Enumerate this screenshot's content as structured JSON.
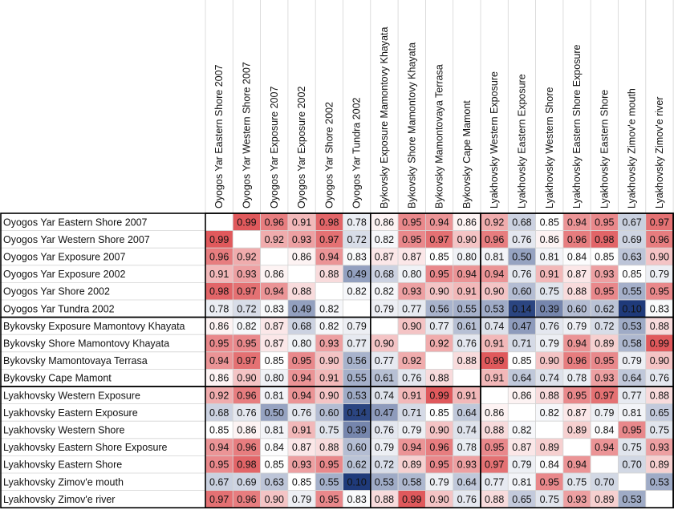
{
  "chart_data": {
    "type": "heatmap",
    "title": "",
    "columns": [
      "Oyogos Yar Eastern Shore 2007",
      "Oyogos Yar Western Shore 2007",
      "Oyogos Yar Exposure 2007",
      "Oyogos Yar Exposure 2002",
      "Oyogos Yar Shore 2002",
      "Oyogos Yar Tundra 2002",
      "Bykovsky Exposure Mamontovy Khayata",
      "Bykovsky Shore Mamontovy Khayata",
      "Bykovsky Mamontovaya Terrasa",
      "Bykovsky Cape Mamont",
      "Lyakhovsky Western Exposure",
      "Lyakhovsky Eastern Exposure",
      "Lyakhovsky Western Shore",
      "Lyakhovsky Eastern Shore Exposure",
      "Lyakhovsky Eastern Shore",
      "Lyakhovsky Zimov'e mouth",
      "Lyakhovsky Zimov'e river"
    ],
    "rows": [
      "Oyogos Yar Eastern Shore 2007",
      "Oyogos Yar Western Shore 2007",
      "Oyogos Yar Exposure 2007",
      "Oyogos Yar Exposure 2002",
      "Oyogos Yar Shore 2002",
      "Oyogos Yar Tundra 2002",
      "Bykovsky Exposure Mamontovy Khayata",
      "Bykovsky Shore Mamontovy Khayata",
      "Bykovsky Mamontovaya Terrasa",
      "Bykovsky Cape Mamont",
      "Lyakhovsky Western Exposure",
      "Lyakhovsky Eastern Exposure",
      "Lyakhovsky Western Shore",
      "Lyakhovsky Eastern Shore Exposure",
      "Lyakhovsky Eastern Shore",
      "Lyakhovsky Zimov'e mouth",
      "Lyakhovsky Zimov'e river"
    ],
    "values": [
      [
        null,
        0.99,
        0.96,
        0.91,
        0.98,
        0.78,
        0.86,
        0.95,
        0.94,
        0.86,
        0.92,
        0.68,
        0.85,
        0.94,
        0.95,
        0.67,
        0.97
      ],
      [
        0.99,
        null,
        0.92,
        0.93,
        0.97,
        0.72,
        0.82,
        0.95,
        0.97,
        0.9,
        0.96,
        0.76,
        0.86,
        0.96,
        0.98,
        0.69,
        0.96
      ],
      [
        0.96,
        0.92,
        null,
        0.86,
        0.94,
        0.83,
        0.87,
        0.87,
        0.85,
        0.8,
        0.81,
        0.5,
        0.81,
        0.84,
        0.85,
        0.63,
        0.9
      ],
      [
        0.91,
        0.93,
        0.86,
        null,
        0.88,
        0.49,
        0.68,
        0.8,
        0.95,
        0.94,
        0.94,
        0.76,
        0.91,
        0.87,
        0.93,
        0.85,
        0.79
      ],
      [
        0.98,
        0.97,
        0.94,
        0.88,
        null,
        0.82,
        0.82,
        0.93,
        0.9,
        0.91,
        0.9,
        0.6,
        0.75,
        0.88,
        0.95,
        0.55,
        0.95
      ],
      [
        0.78,
        0.72,
        0.83,
        0.49,
        0.82,
        null,
        0.79,
        0.77,
        0.56,
        0.55,
        0.53,
        0.14,
        0.39,
        0.6,
        0.62,
        0.1,
        0.83
      ],
      [
        0.86,
        0.82,
        0.87,
        0.68,
        0.82,
        0.79,
        null,
        0.9,
        0.77,
        0.61,
        0.74,
        0.47,
        0.76,
        0.79,
        0.72,
        0.53,
        0.88
      ],
      [
        0.95,
        0.95,
        0.87,
        0.8,
        0.93,
        0.77,
        0.9,
        null,
        0.92,
        0.76,
        0.91,
        0.71,
        0.79,
        0.94,
        0.89,
        0.58,
        0.99
      ],
      [
        0.94,
        0.97,
        0.85,
        0.95,
        0.9,
        0.56,
        0.77,
        0.92,
        null,
        0.88,
        0.99,
        0.85,
        0.9,
        0.96,
        0.95,
        0.79,
        0.9
      ],
      [
        0.86,
        0.9,
        0.8,
        0.94,
        0.91,
        0.55,
        0.61,
        0.76,
        0.88,
        null,
        0.91,
        0.64,
        0.74,
        0.78,
        0.93,
        0.64,
        0.76
      ],
      [
        0.92,
        0.96,
        0.81,
        0.94,
        0.9,
        0.53,
        0.74,
        0.91,
        0.99,
        0.91,
        null,
        0.86,
        0.88,
        0.95,
        0.97,
        0.77,
        0.88
      ],
      [
        0.68,
        0.76,
        0.5,
        0.76,
        0.6,
        0.14,
        0.47,
        0.71,
        0.85,
        0.64,
        0.86,
        null,
        0.82,
        0.87,
        0.79,
        0.81,
        0.65
      ],
      [
        0.85,
        0.86,
        0.81,
        0.91,
        0.75,
        0.39,
        0.76,
        0.79,
        0.9,
        0.74,
        0.88,
        0.82,
        null,
        0.89,
        0.84,
        0.95,
        0.75
      ],
      [
        0.94,
        0.96,
        0.84,
        0.87,
        0.88,
        0.6,
        0.79,
        0.94,
        0.96,
        0.78,
        0.95,
        0.87,
        0.89,
        null,
        0.94,
        0.75,
        0.93
      ],
      [
        0.95,
        0.98,
        0.85,
        0.93,
        0.95,
        0.62,
        0.72,
        0.89,
        0.95,
        0.93,
        0.97,
        0.79,
        0.84,
        0.94,
        null,
        0.7,
        0.89
      ],
      [
        0.67,
        0.69,
        0.63,
        0.85,
        0.55,
        0.1,
        0.53,
        0.58,
        0.79,
        0.64,
        0.77,
        0.81,
        0.95,
        0.75,
        0.7,
        null,
        0.53
      ],
      [
        0.97,
        0.96,
        0.9,
        0.79,
        0.95,
        0.83,
        0.88,
        0.99,
        0.9,
        0.76,
        0.88,
        0.65,
        0.75,
        0.93,
        0.89,
        0.53,
        null
      ]
    ],
    "color_scale": {
      "low_color": "#1f3a7a",
      "mid_color": "#ffffff",
      "high_color": "#e0595c",
      "low_value": 0.1,
      "mid_value": 0.85,
      "high_value": 0.99
    },
    "groups": [
      {
        "name": "Oyogos Yar",
        "size": 6
      },
      {
        "name": "Bykovsky",
        "size": 4
      },
      {
        "name": "Lyakhovsky",
        "size": 7
      }
    ],
    "grid": true,
    "legend": "none"
  }
}
